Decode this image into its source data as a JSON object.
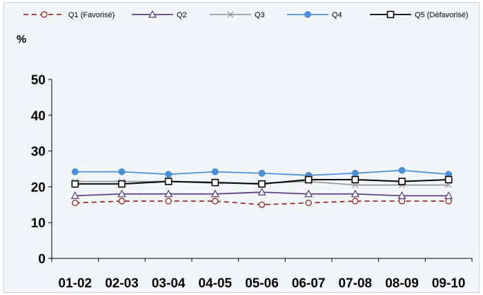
{
  "chart_data": {
    "type": "line",
    "title": "",
    "xlabel": "",
    "ylabel": "%",
    "ylim": [
      0,
      50
    ],
    "yticks": [
      0,
      10,
      20,
      30,
      40,
      50
    ],
    "grid": false,
    "legend_position": "top",
    "categories": [
      "01-02",
      "02-03",
      "03-04",
      "04-05",
      "05-06",
      "06-07",
      "07-08",
      "08-09",
      "09-10"
    ],
    "series": [
      {
        "name": "Q1 (Favorisé)",
        "color": "#9c2b2b",
        "marker": "circle-open",
        "dash": "dashed",
        "values": [
          15.5,
          16,
          16,
          16,
          15,
          15.5,
          16,
          16,
          16
        ]
      },
      {
        "name": "Q2",
        "color": "#5b3f86",
        "marker": "triangle-open",
        "dash": "solid",
        "values": [
          17.5,
          18,
          18,
          18,
          18.5,
          18,
          18,
          17.5,
          17.5
        ]
      },
      {
        "name": "Q3",
        "color": "#9a9a9a",
        "marker": "x",
        "dash": "solid",
        "values": [
          21.5,
          21.5,
          21.5,
          21,
          21,
          21.5,
          20.5,
          20.5,
          20.5
        ]
      },
      {
        "name": "Q4",
        "color": "#4a90d9",
        "marker": "circle-filled",
        "dash": "solid",
        "values": [
          24.2,
          24.2,
          23.5,
          24.2,
          23.8,
          23.2,
          23.8,
          24.6,
          23.5
        ]
      },
      {
        "name": "Q5 (Défavorisé)",
        "color": "#000000",
        "marker": "square-open",
        "dash": "solid",
        "values": [
          20.8,
          20.8,
          21.5,
          21.2,
          20.8,
          22,
          22,
          21.5,
          22
        ]
      }
    ]
  }
}
